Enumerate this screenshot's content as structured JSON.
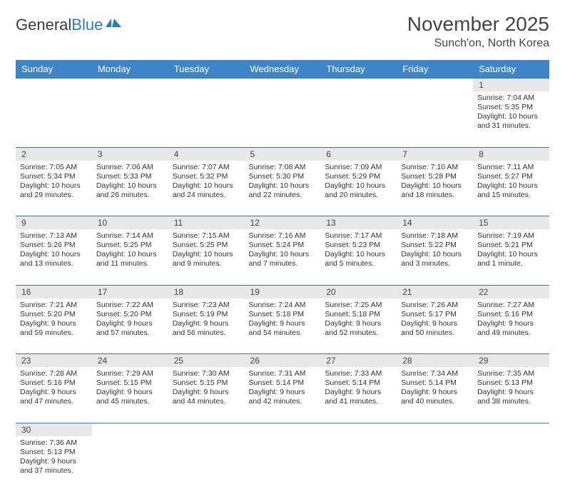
{
  "brand": {
    "name1": "General",
    "name2": "Blue"
  },
  "title": "November 2025",
  "location": "Sunch'on, North Korea",
  "colors": {
    "header_bg": "#3d85c6",
    "header_text": "#ffffff",
    "daynum_bg": "#e8e8e8",
    "rule": "#2b7bbf",
    "brand_blue": "#2b7bbf"
  },
  "day_headers": [
    "Sunday",
    "Monday",
    "Tuesday",
    "Wednesday",
    "Thursday",
    "Friday",
    "Saturday"
  ],
  "weeks": [
    [
      null,
      null,
      null,
      null,
      null,
      null,
      {
        "n": "1",
        "sr": "Sunrise: 7:04 AM",
        "ss": "Sunset: 5:35 PM",
        "dl": "Daylight: 10 hours and 31 minutes."
      }
    ],
    [
      {
        "n": "2",
        "sr": "Sunrise: 7:05 AM",
        "ss": "Sunset: 5:34 PM",
        "dl": "Daylight: 10 hours and 29 minutes."
      },
      {
        "n": "3",
        "sr": "Sunrise: 7:06 AM",
        "ss": "Sunset: 5:33 PM",
        "dl": "Daylight: 10 hours and 26 minutes."
      },
      {
        "n": "4",
        "sr": "Sunrise: 7:07 AM",
        "ss": "Sunset: 5:32 PM",
        "dl": "Daylight: 10 hours and 24 minutes."
      },
      {
        "n": "5",
        "sr": "Sunrise: 7:08 AM",
        "ss": "Sunset: 5:30 PM",
        "dl": "Daylight: 10 hours and 22 minutes."
      },
      {
        "n": "6",
        "sr": "Sunrise: 7:09 AM",
        "ss": "Sunset: 5:29 PM",
        "dl": "Daylight: 10 hours and 20 minutes."
      },
      {
        "n": "7",
        "sr": "Sunrise: 7:10 AM",
        "ss": "Sunset: 5:28 PM",
        "dl": "Daylight: 10 hours and 18 minutes."
      },
      {
        "n": "8",
        "sr": "Sunrise: 7:11 AM",
        "ss": "Sunset: 5:27 PM",
        "dl": "Daylight: 10 hours and 15 minutes."
      }
    ],
    [
      {
        "n": "9",
        "sr": "Sunrise: 7:13 AM",
        "ss": "Sunset: 5:26 PM",
        "dl": "Daylight: 10 hours and 13 minutes."
      },
      {
        "n": "10",
        "sr": "Sunrise: 7:14 AM",
        "ss": "Sunset: 5:25 PM",
        "dl": "Daylight: 10 hours and 11 minutes."
      },
      {
        "n": "11",
        "sr": "Sunrise: 7:15 AM",
        "ss": "Sunset: 5:25 PM",
        "dl": "Daylight: 10 hours and 9 minutes."
      },
      {
        "n": "12",
        "sr": "Sunrise: 7:16 AM",
        "ss": "Sunset: 5:24 PM",
        "dl": "Daylight: 10 hours and 7 minutes."
      },
      {
        "n": "13",
        "sr": "Sunrise: 7:17 AM",
        "ss": "Sunset: 5:23 PM",
        "dl": "Daylight: 10 hours and 5 minutes."
      },
      {
        "n": "14",
        "sr": "Sunrise: 7:18 AM",
        "ss": "Sunset: 5:22 PM",
        "dl": "Daylight: 10 hours and 3 minutes."
      },
      {
        "n": "15",
        "sr": "Sunrise: 7:19 AM",
        "ss": "Sunset: 5:21 PM",
        "dl": "Daylight: 10 hours and 1 minute."
      }
    ],
    [
      {
        "n": "16",
        "sr": "Sunrise: 7:21 AM",
        "ss": "Sunset: 5:20 PM",
        "dl": "Daylight: 9 hours and 59 minutes."
      },
      {
        "n": "17",
        "sr": "Sunrise: 7:22 AM",
        "ss": "Sunset: 5:20 PM",
        "dl": "Daylight: 9 hours and 57 minutes."
      },
      {
        "n": "18",
        "sr": "Sunrise: 7:23 AM",
        "ss": "Sunset: 5:19 PM",
        "dl": "Daylight: 9 hours and 56 minutes."
      },
      {
        "n": "19",
        "sr": "Sunrise: 7:24 AM",
        "ss": "Sunset: 5:18 PM",
        "dl": "Daylight: 9 hours and 54 minutes."
      },
      {
        "n": "20",
        "sr": "Sunrise: 7:25 AM",
        "ss": "Sunset: 5:18 PM",
        "dl": "Daylight: 9 hours and 52 minutes."
      },
      {
        "n": "21",
        "sr": "Sunrise: 7:26 AM",
        "ss": "Sunset: 5:17 PM",
        "dl": "Daylight: 9 hours and 50 minutes."
      },
      {
        "n": "22",
        "sr": "Sunrise: 7:27 AM",
        "ss": "Sunset: 5:16 PM",
        "dl": "Daylight: 9 hours and 49 minutes."
      }
    ],
    [
      {
        "n": "23",
        "sr": "Sunrise: 7:28 AM",
        "ss": "Sunset: 5:16 PM",
        "dl": "Daylight: 9 hours and 47 minutes."
      },
      {
        "n": "24",
        "sr": "Sunrise: 7:29 AM",
        "ss": "Sunset: 5:15 PM",
        "dl": "Daylight: 9 hours and 45 minutes."
      },
      {
        "n": "25",
        "sr": "Sunrise: 7:30 AM",
        "ss": "Sunset: 5:15 PM",
        "dl": "Daylight: 9 hours and 44 minutes."
      },
      {
        "n": "26",
        "sr": "Sunrise: 7:31 AM",
        "ss": "Sunset: 5:14 PM",
        "dl": "Daylight: 9 hours and 42 minutes."
      },
      {
        "n": "27",
        "sr": "Sunrise: 7:33 AM",
        "ss": "Sunset: 5:14 PM",
        "dl": "Daylight: 9 hours and 41 minutes."
      },
      {
        "n": "28",
        "sr": "Sunrise: 7:34 AM",
        "ss": "Sunset: 5:14 PM",
        "dl": "Daylight: 9 hours and 40 minutes."
      },
      {
        "n": "29",
        "sr": "Sunrise: 7:35 AM",
        "ss": "Sunset: 5:13 PM",
        "dl": "Daylight: 9 hours and 38 minutes."
      }
    ],
    [
      {
        "n": "30",
        "sr": "Sunrise: 7:36 AM",
        "ss": "Sunset: 5:13 PM",
        "dl": "Daylight: 9 hours and 37 minutes."
      },
      null,
      null,
      null,
      null,
      null,
      null
    ]
  ]
}
